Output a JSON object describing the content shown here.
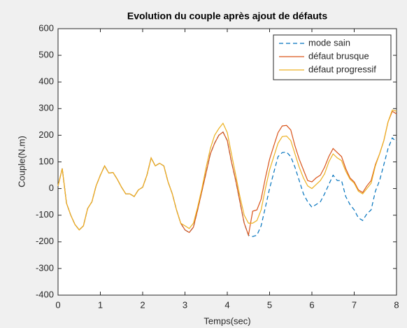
{
  "chart_data": {
    "type": "line",
    "title": "Evolution du couple après ajout de défauts",
    "x_label": "Temps(sec)",
    "y_label": "Couple(N.m)",
    "x": [
      0,
      0.1,
      0.2,
      0.3,
      0.4,
      0.5,
      0.6,
      0.7,
      0.8,
      0.9,
      1.0,
      1.1,
      1.2,
      1.3,
      1.4,
      1.5,
      1.6,
      1.7,
      1.8,
      1.9,
      2.0,
      2.1,
      2.2,
      2.3,
      2.4,
      2.5,
      2.6,
      2.7,
      2.8,
      2.9,
      3.0,
      3.1,
      3.2,
      3.3,
      3.4,
      3.5,
      3.6,
      3.7,
      3.8,
      3.9,
      4.0,
      4.1,
      4.2,
      4.3,
      4.4,
      4.5,
      4.6,
      4.7,
      4.8,
      4.9,
      5.0,
      5.1,
      5.2,
      5.3,
      5.4,
      5.5,
      5.6,
      5.7,
      5.8,
      5.9,
      6.0,
      6.1,
      6.2,
      6.3,
      6.4,
      6.5,
      6.6,
      6.7,
      6.8,
      6.9,
      7.0,
      7.1,
      7.2,
      7.3,
      7.4,
      7.5,
      7.6,
      7.7,
      7.8,
      7.9,
      8.0
    ],
    "series": [
      {
        "name": "mode sain",
        "color": "#0072bd",
        "dash": true,
        "values": [
          10,
          75,
          -55,
          -100,
          -135,
          -155,
          -140,
          -75,
          -50,
          10,
          50,
          85,
          58,
          60,
          35,
          5,
          -20,
          -20,
          -30,
          -5,
          5,
          50,
          115,
          85,
          95,
          85,
          25,
          -20,
          -80,
          -130,
          -155,
          -165,
          -145,
          -80,
          -10,
          60,
          130,
          170,
          200,
          212,
          180,
          100,
          30,
          -50,
          -130,
          -175,
          -180,
          -175,
          -140,
          -70,
          0,
          60,
          120,
          135,
          137,
          120,
          80,
          30,
          -20,
          -50,
          -70,
          -60,
          -50,
          -20,
          15,
          50,
          30,
          30,
          -30,
          -60,
          -80,
          -110,
          -120,
          -95,
          -80,
          -10,
          30,
          90,
          150,
          190,
          175
        ]
      },
      {
        "name": "défaut brusque",
        "color": "#d95319",
        "dash": false,
        "values": [
          10,
          75,
          -55,
          -100,
          -135,
          -155,
          -140,
          -75,
          -50,
          10,
          50,
          85,
          58,
          60,
          35,
          5,
          -20,
          -20,
          -30,
          -5,
          5,
          50,
          115,
          85,
          95,
          85,
          25,
          -20,
          -80,
          -130,
          -155,
          -165,
          -145,
          -80,
          -10,
          60,
          130,
          170,
          200,
          212,
          180,
          100,
          30,
          -50,
          -130,
          -175,
          -85,
          -80,
          -40,
          40,
          110,
          160,
          210,
          235,
          237,
          220,
          160,
          110,
          70,
          30,
          25,
          40,
          50,
          80,
          120,
          150,
          135,
          120,
          75,
          40,
          25,
          -5,
          -15,
          10,
          30,
          90,
          130,
          180,
          250,
          290,
          280
        ]
      },
      {
        "name": "défaut progressif",
        "color": "#edb120",
        "dash": false,
        "values": [
          10,
          75,
          -55,
          -100,
          -135,
          -155,
          -140,
          -75,
          -50,
          10,
          50,
          85,
          58,
          60,
          35,
          5,
          -20,
          -20,
          -30,
          -5,
          5,
          50,
          115,
          85,
          95,
          85,
          25,
          -20,
          -80,
          -130,
          -140,
          -150,
          -130,
          -70,
          0,
          80,
          150,
          200,
          225,
          245,
          210,
          130,
          50,
          -30,
          -100,
          -130,
          -130,
          -120,
          -80,
          0,
          70,
          120,
          170,
          195,
          197,
          180,
          130,
          80,
          40,
          10,
          0,
          15,
          30,
          55,
          100,
          130,
          115,
          105,
          65,
          35,
          20,
          -10,
          -20,
          0,
          20,
          85,
          130,
          180,
          250,
          295,
          290
        ]
      }
    ],
    "xlim": [
      0,
      8
    ],
    "xticks": [
      0,
      1,
      2,
      3,
      4,
      5,
      6,
      7,
      8
    ],
    "ylim": [
      -400,
      600
    ],
    "yticks": [
      -400,
      -300,
      -200,
      -100,
      0,
      100,
      200,
      300,
      400,
      500,
      600
    ],
    "legend": "upper right"
  }
}
